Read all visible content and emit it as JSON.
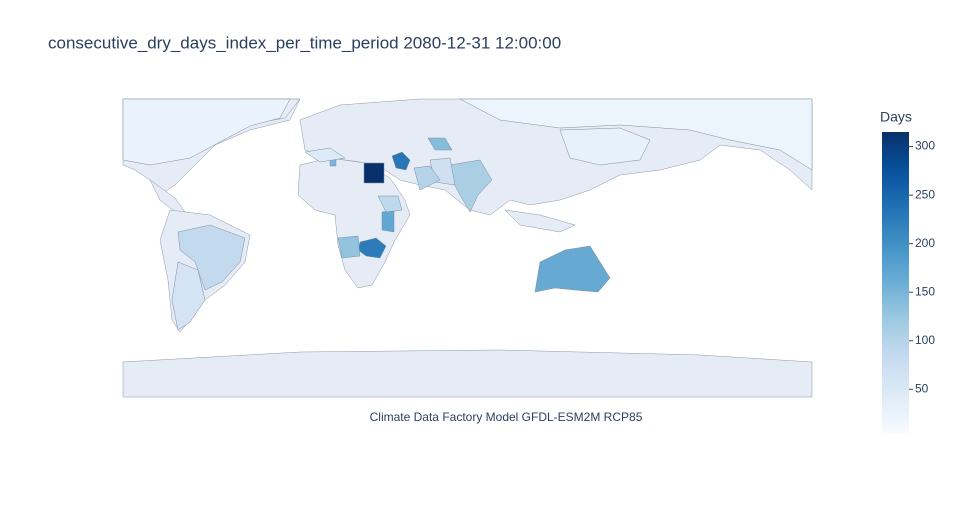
{
  "chart_data": {
    "type": "choropleth",
    "title": "consecutive_dry_days_index_per_time_period 2080-12-31 12:00:00",
    "annotation": "Climate Data Factory Model GFDL-ESM2M RCP85",
    "colorbar_title": "Days",
    "colorscale": [
      "#f7fbff",
      "#deebf7",
      "#c6dbef",
      "#9ecae1",
      "#6baed6",
      "#4292c6",
      "#2171b5",
      "#08519c",
      "#08306b"
    ],
    "zlim": [
      5,
      315
    ],
    "zticks": [
      50,
      100,
      150,
      200,
      250,
      300
    ],
    "values": [
      315,
      230,
      225,
      130,
      165,
      170,
      110,
      85,
      60,
      150,
      140,
      90,
      25,
      20,
      30,
      45,
      70,
      100
    ]
  }
}
